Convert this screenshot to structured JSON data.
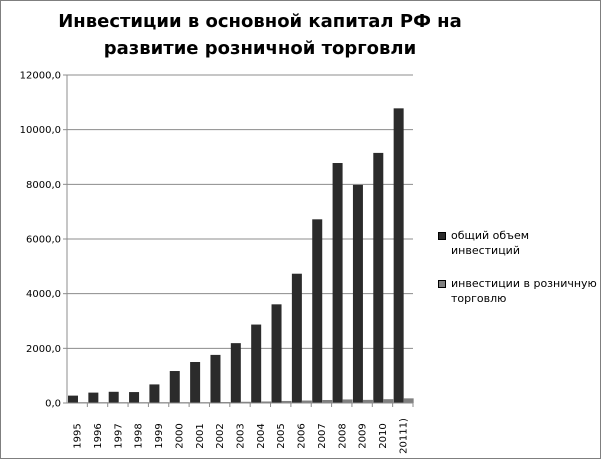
{
  "chart_data": {
    "type": "bar",
    "title": "Инвестиции в основной капитал РФ на развитие розничной торговли",
    "categories": [
      "1995",
      "1996",
      "1997",
      "1998",
      "1999",
      "2000",
      "2001",
      "2002",
      "2003",
      "2004",
      "2005",
      "2006",
      "2007",
      "2008",
      "2009",
      "2010",
      "20111)"
    ],
    "series": [
      {
        "name": "общий объем инвестиций",
        "color": "#2b2b2b",
        "values": [
          270,
          380,
          410,
          400,
          680,
          1170,
          1500,
          1760,
          2190,
          2870,
          3610,
          4730,
          6720,
          8780,
          7980,
          9150,
          10780
        ]
      },
      {
        "name": "инвестиции в розничную торговлю",
        "color": "#808080",
        "values": [
          5,
          6,
          7,
          8,
          10,
          18,
          25,
          35,
          45,
          55,
          75,
          90,
          110,
          130,
          115,
          140,
          170
        ]
      }
    ],
    "ylim": [
      0,
      12000
    ],
    "yticks": [
      "0,0",
      "2000,0",
      "4000,0",
      "6000,0",
      "8000,0",
      "10000,0",
      "12000,0"
    ],
    "ytick_values": [
      0,
      2000,
      4000,
      6000,
      8000,
      10000,
      12000
    ],
    "grid": "y-major",
    "legend_position": "right"
  }
}
